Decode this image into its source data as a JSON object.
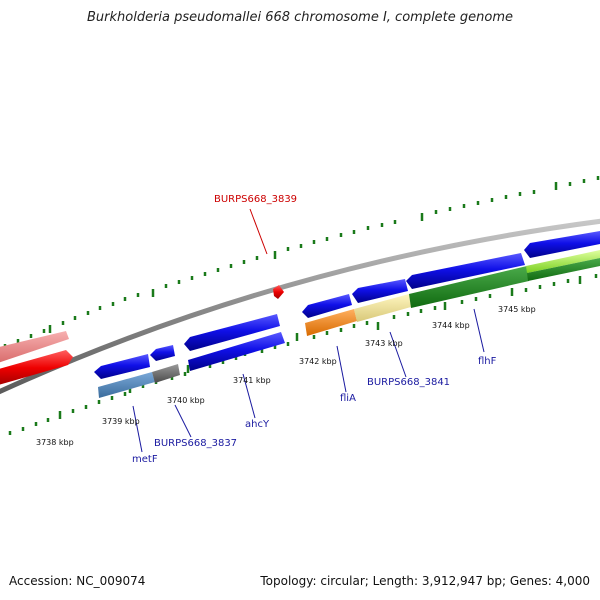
{
  "title": "Burkholderia pseudomallei 668 chromosome I, complete genome",
  "footer": {
    "accession": "Accession: NC_009074",
    "summary": "Topology: circular; Length: 3,912,947 bp; Genes: 4,000"
  },
  "ticks": [
    "3738 kbp",
    "3739 kbp",
    "3740 kbp",
    "3741 kbp",
    "3742 kbp",
    "3743 kbp",
    "3744 kbp",
    "3745 kbp"
  ],
  "gene_labels": [
    "metF",
    "BURPS668_3837",
    "ahcY",
    "fliA",
    "BURPS668_3841",
    "flhF"
  ],
  "feature_label": "BURPS668_3839",
  "colors": {
    "tick": "#1a7a1a",
    "backbone": "#8a8a8a",
    "cds": "#0a0ae0",
    "gene_label": "#1a1aa0",
    "feature_label": "#cc0000",
    "feature": "#ee0000"
  }
}
